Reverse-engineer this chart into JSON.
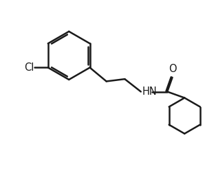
{
  "background_color": "#ffffff",
  "line_color": "#1a1a1a",
  "bond_width": 1.8,
  "figsize": [
    3.14,
    2.52
  ],
  "dpi": 100,
  "hn_color": "#1a1a1a",
  "o_color": "#1a1a1a",
  "cl_color": "#1a1a1a",
  "font_size": 10.5,
  "xlim": [
    0,
    9
  ],
  "ylim": [
    0,
    7.5
  ]
}
